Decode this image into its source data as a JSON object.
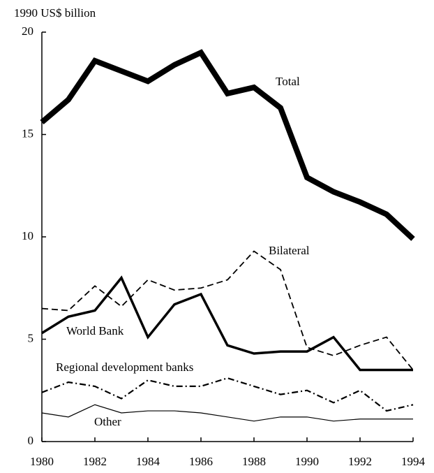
{
  "chart_data": {
    "type": "line",
    "ylabel": "1990 US$ billion",
    "x": [
      1980,
      1981,
      1982,
      1983,
      1984,
      1985,
      1986,
      1987,
      1988,
      1989,
      1990,
      1991,
      1992,
      1993,
      1994
    ],
    "xlim": [
      1980,
      1994
    ],
    "xticks": [
      1980,
      1982,
      1984,
      1986,
      1988,
      1990,
      1992,
      1994
    ],
    "ylim": [
      0,
      20
    ],
    "yticks": [
      0,
      5,
      10,
      15,
      20
    ],
    "series": [
      {
        "name": "Total",
        "color": "#000000",
        "dash": "solid",
        "width": 8,
        "values": [
          15.6,
          16.7,
          18.6,
          18.1,
          17.6,
          18.4,
          19.0,
          17.0,
          17.3,
          16.3,
          12.9,
          12.2,
          11.7,
          11.1,
          9.9
        ]
      },
      {
        "name": "Bilateral",
        "color": "#000000",
        "dash": "dashed",
        "width": 1.8,
        "values": [
          6.5,
          6.4,
          7.6,
          6.6,
          7.9,
          7.4,
          7.5,
          7.9,
          9.3,
          8.4,
          4.6,
          4.2,
          4.7,
          5.1,
          3.5
        ]
      },
      {
        "name": "World Bank",
        "color": "#000000",
        "dash": "solid",
        "width": 3.5,
        "values": [
          5.3,
          6.1,
          6.4,
          8.0,
          5.1,
          6.7,
          7.2,
          4.7,
          4.3,
          4.4,
          4.4,
          5.1,
          3.5,
          3.5,
          3.5
        ]
      },
      {
        "name": "Regional development banks",
        "color": "#000000",
        "dash": "dashdot",
        "width": 2.2,
        "values": [
          2.4,
          2.9,
          2.7,
          2.1,
          3.0,
          2.7,
          2.7,
          3.1,
          2.7,
          2.3,
          2.5,
          1.9,
          2.5,
          1.5,
          1.8
        ]
      },
      {
        "name": "Other",
        "color": "#000000",
        "dash": "solid",
        "width": 1.2,
        "values": [
          1.4,
          1.2,
          1.8,
          1.4,
          1.5,
          1.5,
          1.4,
          1.2,
          1.0,
          1.2,
          1.2,
          1.0,
          1.1,
          1.1,
          1.1
        ]
      }
    ]
  }
}
